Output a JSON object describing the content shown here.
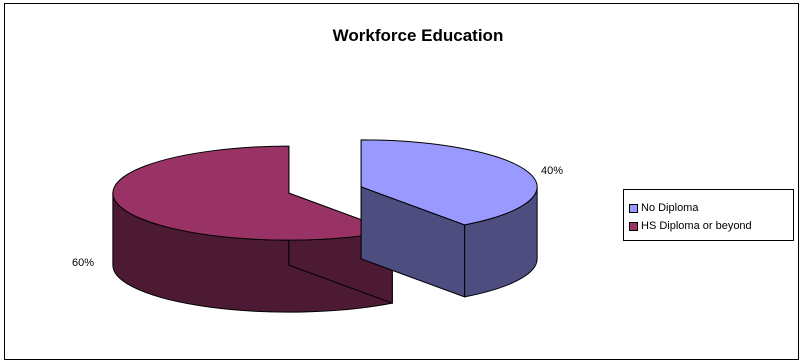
{
  "chart_data": {
    "type": "pie",
    "title": "Workforce Education",
    "categories": [
      "No Diploma",
      "HS Diploma or beyond"
    ],
    "values": [
      40,
      60
    ],
    "data_labels": [
      "40%",
      "60%"
    ],
    "legend": "right",
    "colors": {
      "No Diploma": {
        "top": "#9999ff",
        "side": "#4d4d80"
      },
      "HS Diploma or beyond": {
        "top": "#993366",
        "side": "#4d1a33"
      }
    },
    "exploded": true
  }
}
